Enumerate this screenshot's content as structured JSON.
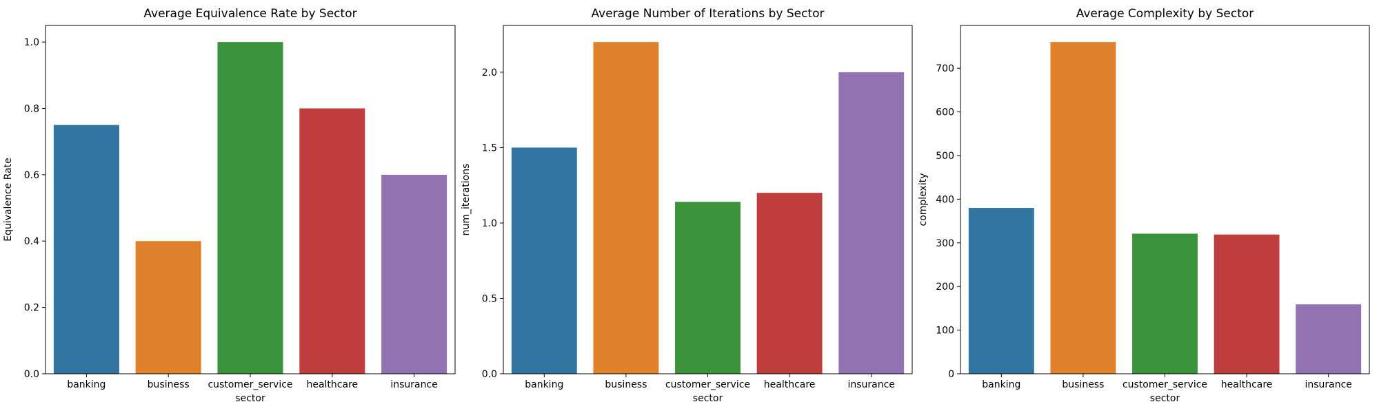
{
  "colors": [
    "#3274a1",
    "#e1812c",
    "#3a923a",
    "#c03d3e",
    "#9372b2"
  ],
  "chart_data": [
    {
      "type": "bar",
      "title": "Average Equivalence Rate by Sector",
      "xlabel": "sector",
      "ylabel": "Equivalence Rate",
      "categories": [
        "banking",
        "business",
        "customer_service",
        "healthcare",
        "insurance"
      ],
      "values": [
        0.75,
        0.4,
        1.0,
        0.8,
        0.6
      ],
      "ylim": [
        0,
        1.05
      ],
      "yticks": [
        0.0,
        0.2,
        0.4,
        0.6,
        0.8,
        1.0
      ],
      "ytick_labels": [
        "0.0",
        "0.2",
        "0.4",
        "0.6",
        "0.8",
        "1.0"
      ],
      "grid": false
    },
    {
      "type": "bar",
      "title": "Average Number of Iterations by Sector",
      "xlabel": "sector",
      "ylabel": "num_iterations",
      "categories": [
        "banking",
        "business",
        "customer_service",
        "healthcare",
        "insurance"
      ],
      "values": [
        1.5,
        2.2,
        1.14,
        1.2,
        2.0
      ],
      "ylim": [
        0,
        2.31
      ],
      "yticks": [
        0.0,
        0.5,
        1.0,
        1.5,
        2.0
      ],
      "ytick_labels": [
        "0.0",
        "0.5",
        "1.0",
        "1.5",
        "2.0"
      ],
      "grid": false
    },
    {
      "type": "bar",
      "title": "Average Complexity by Sector",
      "xlabel": "sector",
      "ylabel": "complexity",
      "categories": [
        "banking",
        "business",
        "customer_service",
        "healthcare",
        "insurance"
      ],
      "values": [
        380,
        760,
        321,
        319,
        159
      ],
      "ylim": [
        0,
        798
      ],
      "yticks": [
        0,
        100,
        200,
        300,
        400,
        500,
        600,
        700
      ],
      "ytick_labels": [
        "0",
        "100",
        "200",
        "300",
        "400",
        "500",
        "600",
        "700"
      ],
      "grid": false
    }
  ]
}
